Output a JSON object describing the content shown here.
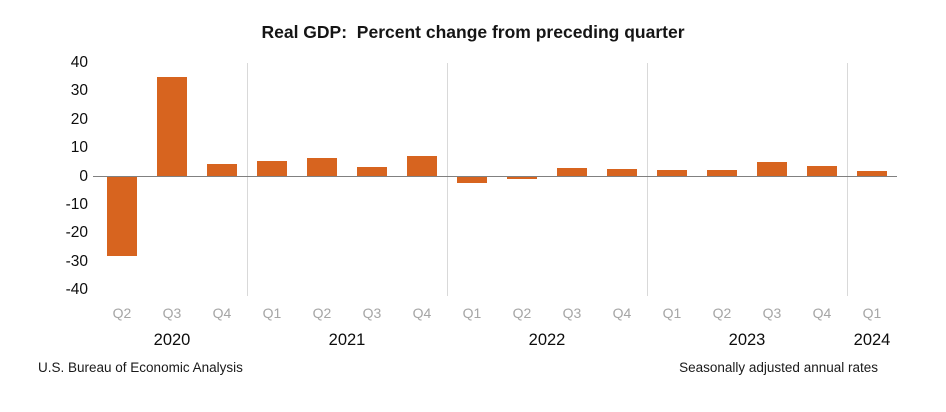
{
  "title": "Real GDP:  Percent change from preceding quarter",
  "footer": {
    "source": "U.S. Bureau of Economic Analysis",
    "note": "Seasonally adjusted annual rates"
  },
  "chart_data": {
    "type": "bar",
    "title": "Real GDP:  Percent change from preceding quarter",
    "categories": [
      "Q2",
      "Q3",
      "Q4",
      "Q1",
      "Q2",
      "Q3",
      "Q4",
      "Q1",
      "Q2",
      "Q3",
      "Q4",
      "Q1",
      "Q2",
      "Q3",
      "Q4",
      "Q1"
    ],
    "year_groups": [
      {
        "year": "2020",
        "start": 0,
        "count": 3
      },
      {
        "year": "2021",
        "start": 3,
        "count": 4
      },
      {
        "year": "2022",
        "start": 7,
        "count": 4
      },
      {
        "year": "2023",
        "start": 11,
        "count": 4
      },
      {
        "year": "2024",
        "start": 15,
        "count": 1
      }
    ],
    "values": [
      -28.0,
      34.8,
      4.2,
      5.2,
      6.2,
      3.3,
      7.0,
      -2.0,
      -0.6,
      2.7,
      2.6,
      2.2,
      2.1,
      4.9,
      3.4,
      1.6
    ],
    "xlabel": "",
    "ylabel": "",
    "ylim": [
      -40,
      40
    ],
    "yticks": [
      40,
      30,
      20,
      10,
      0,
      -10,
      -20,
      -30,
      -40
    ],
    "grid": "vertical year separators only",
    "legend": "none",
    "bar_color": "#d7641f",
    "quarter_label_color": "#a6a6a6",
    "year_label_color": "#0d0d0d",
    "gridline_color": "#d9d9d9",
    "zero_line_color": "#808080"
  }
}
